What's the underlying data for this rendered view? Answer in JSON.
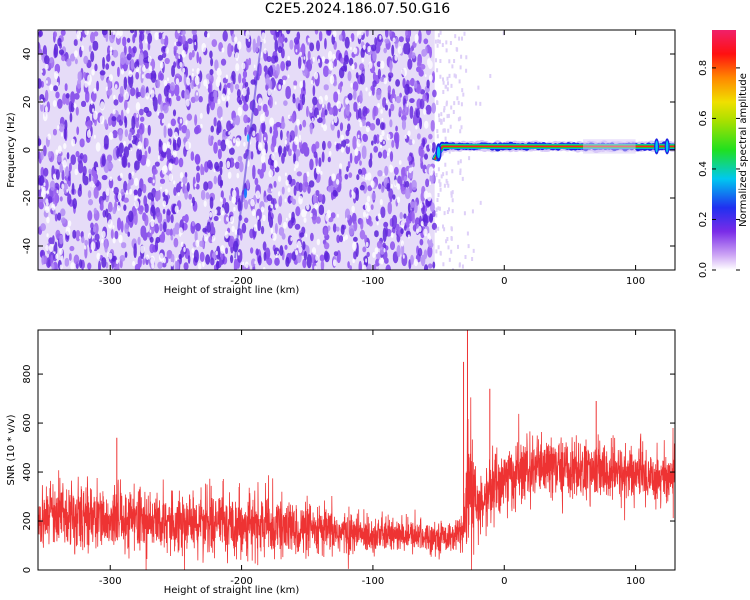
{
  "title": "C2E5.2024.186.07.50.G16",
  "colors": {
    "snr_line": "#ee3333",
    "noise_purple": "#7b3fe8",
    "noise_light": "#e6dcf8",
    "frame": "#000000"
  },
  "chart_data": [
    {
      "type": "heatmap",
      "title": "",
      "xlabel": "Height of straight line (km)",
      "ylabel": "Frequency (Hz)",
      "xlim": [
        -355,
        130
      ],
      "ylim": [
        -50,
        50
      ],
      "x_ticks": [
        -300,
        -200,
        -100,
        0,
        100
      ],
      "y_ticks": [
        -40,
        -20,
        0,
        20,
        40
      ],
      "x_tick_labels": [
        "-300",
        "-200",
        "-100",
        "0",
        "100"
      ],
      "y_tick_labels": [
        "-40",
        "-20",
        "0",
        "20",
        "40"
      ],
      "colorbar": {
        "label": "Normalized spectral amplitude",
        "range": [
          0,
          0.95
        ],
        "ticks": [
          0.0,
          0.2,
          0.4,
          0.6,
          0.8
        ],
        "tick_labels": [
          "0.0",
          "0.2",
          "0.4",
          "0.6",
          "0.8"
        ],
        "colormap": "rainbow (white-purple-blue-cyan-green-yellow-orange-red-magenta)"
      },
      "features": {
        "noise_region_x": [
          -355,
          -53
        ],
        "tone_region_x": [
          -53,
          130
        ],
        "tone_frequency_hz": 1.5,
        "tone_start_frequency_hz": -4,
        "faint_streak_x": [
          -205,
          -185
        ]
      }
    },
    {
      "type": "line",
      "title": "",
      "xlabel": "Height of straight line (km)",
      "ylabel": "SNR (10 * v/v)",
      "xlim": [
        -355,
        130
      ],
      "ylim": [
        0,
        980
      ],
      "x_ticks": [
        -300,
        -200,
        -100,
        0,
        100
      ],
      "y_ticks": [
        0,
        200,
        400,
        600,
        800
      ],
      "x_tick_labels": [
        "-300",
        "-200",
        "-100",
        "0",
        "100"
      ],
      "y_tick_labels": [
        "0",
        "200",
        "400",
        "600",
        "800"
      ],
      "series": [
        {
          "envelope": {
            "x": [
              -355,
              -320,
              -280,
              -250,
              -200,
              -160,
              -120,
              -80,
              -40,
              -30,
              -28,
              -20,
              -10,
              0,
              20,
              40,
              60,
              80,
              100,
              120,
              130
            ],
            "mean": [
              220,
              215,
              205,
              200,
              190,
              165,
              150,
              140,
              135,
              150,
              350,
              240,
              330,
              370,
              410,
              420,
              405,
              395,
              390,
              380,
              380
            ],
            "spread": [
              110,
              115,
              115,
              115,
              115,
              100,
              80,
              60,
              55,
              80,
              300,
              120,
              140,
              130,
              120,
              110,
              110,
              110,
              110,
              110,
              110
            ]
          },
          "spikes": [
            {
              "x": -28,
              "y": 980
            },
            {
              "x": -31,
              "y": 850
            },
            {
              "x": -11,
              "y": 740
            },
            {
              "x": 70,
              "y": 690
            },
            {
              "x": -295,
              "y": 540
            }
          ]
        }
      ]
    }
  ]
}
